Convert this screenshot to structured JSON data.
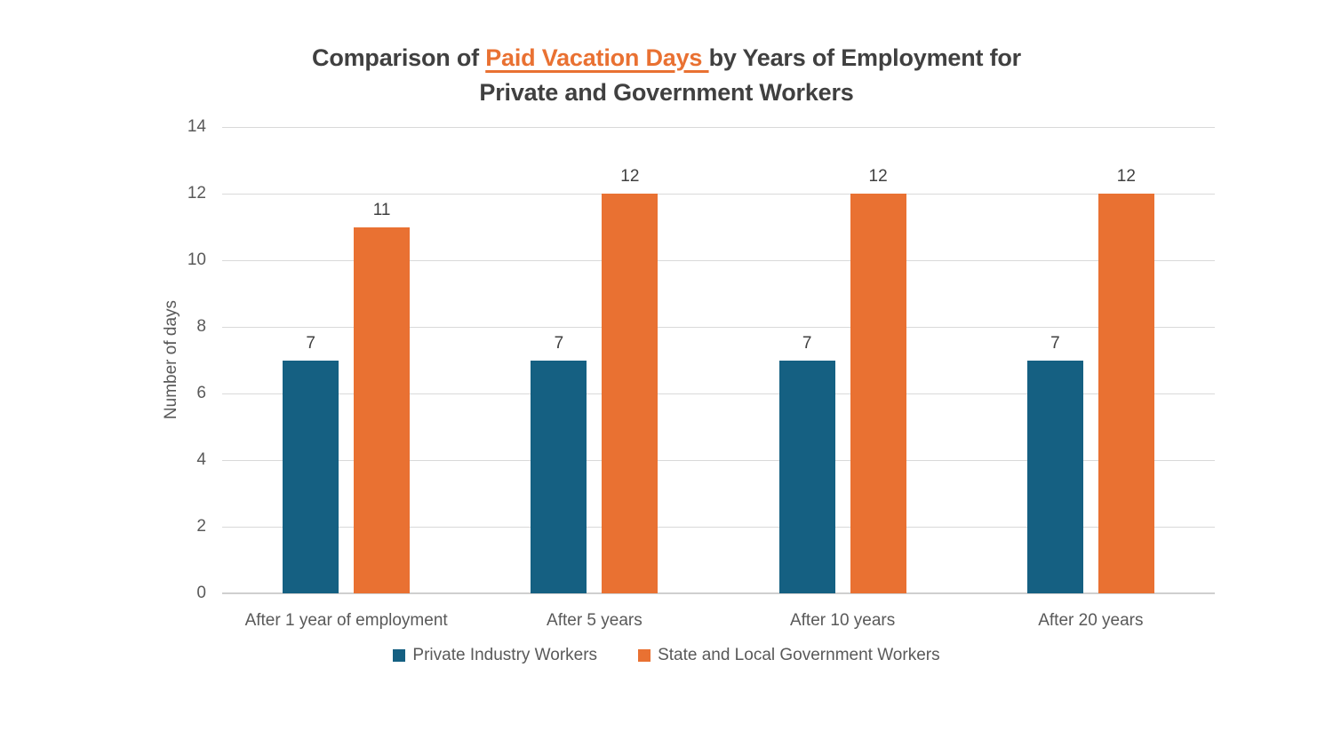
{
  "title": {
    "prefix": "Comparison of ",
    "highlight": "Paid Vacation Days ",
    "suffix": "by Years of Employment for",
    "line2": "Private and Government Workers",
    "highlight_color": "#E97132",
    "text_color": "#404040"
  },
  "chart_data": {
    "type": "bar",
    "categories": [
      "After 1 year of employment",
      "After 5 years",
      "After 10 years",
      "After 20 years"
    ],
    "series": [
      {
        "name": "Private Industry Workers",
        "color": "#156082",
        "values": [
          7,
          7,
          7,
          7
        ]
      },
      {
        "name": "State and Local Government Workers",
        "color": "#E97132",
        "values": [
          11,
          12,
          12,
          12
        ]
      }
    ],
    "ylabel": "Number of days",
    "xlabel": "",
    "ylim": [
      0,
      14
    ],
    "yticks": [
      0,
      2,
      4,
      6,
      8,
      10,
      12,
      14
    ],
    "grid": true,
    "data_labels": true,
    "legend_position": "bottom",
    "gridline_color": "#d9d9d9",
    "axis_text_color": "#595959",
    "label_text_color": "#404040"
  }
}
